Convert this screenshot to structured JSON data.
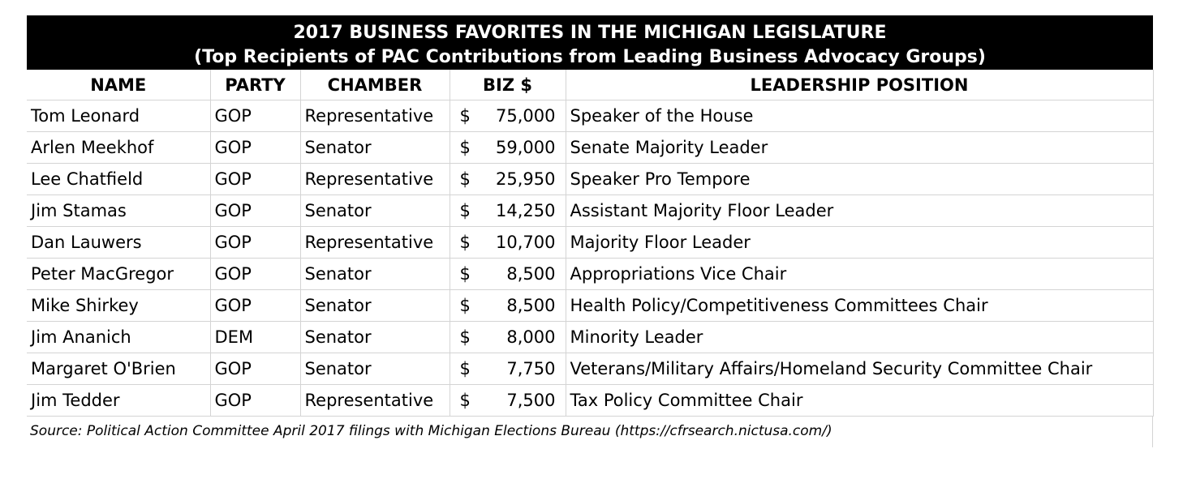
{
  "title": {
    "line1": "2017 BUSINESS FAVORITES IN THE MICHIGAN LEGISLATURE",
    "line2": "(Top Recipients of PAC Contributions from Leading Business Advocacy Groups)"
  },
  "headers": {
    "name": "NAME",
    "party": "PARTY",
    "chamber": "CHAMBER",
    "biz": "BIZ $",
    "leadership": "LEADERSHIP POSITION"
  },
  "currency_symbol": "$",
  "rows": [
    {
      "name": "Tom Leonard",
      "party": "GOP",
      "chamber": "Representative",
      "amount": "75,000",
      "position": "Speaker of the House"
    },
    {
      "name": "Arlen Meekhof",
      "party": "GOP",
      "chamber": "Senator",
      "amount": "59,000",
      "position": "Senate Majority Leader"
    },
    {
      "name": "Lee Chatfield",
      "party": "GOP",
      "chamber": "Representative",
      "amount": "25,950",
      "position": "Speaker Pro Tempore"
    },
    {
      "name": "Jim Stamas",
      "party": "GOP",
      "chamber": "Senator",
      "amount": "14,250",
      "position": "Assistant Majority Floor Leader"
    },
    {
      "name": "Dan Lauwers",
      "party": "GOP",
      "chamber": "Representative",
      "amount": "10,700",
      "position": "Majority Floor Leader"
    },
    {
      "name": "Peter MacGregor",
      "party": "GOP",
      "chamber": "Senator",
      "amount": "8,500",
      "position": "Appropriations Vice Chair"
    },
    {
      "name": "Mike Shirkey",
      "party": "GOP",
      "chamber": "Senator",
      "amount": "8,500",
      "position": "Health Policy/Competitiveness Committees Chair"
    },
    {
      "name": "Jim Ananich",
      "party": "DEM",
      "chamber": "Senator",
      "amount": "8,000",
      "position": "Minority Leader"
    },
    {
      "name": "Margaret O'Brien",
      "party": "GOP",
      "chamber": "Senator",
      "amount": "7,750",
      "position": "Veterans/Military Affairs/Homeland Security Committee Chair"
    },
    {
      "name": "Jim Tedder",
      "party": "GOP",
      "chamber": "Representative",
      "amount": "7,500",
      "position": "Tax Policy Committee Chair"
    }
  ],
  "source": "Source: Political Action Committee April 2017 filings with Michigan Elections Bureau (https://cfrsearch.nictusa.com/)",
  "colors": {
    "title_background": "#000000",
    "title_text": "#ffffff",
    "gridline": "#d4d4d4"
  }
}
